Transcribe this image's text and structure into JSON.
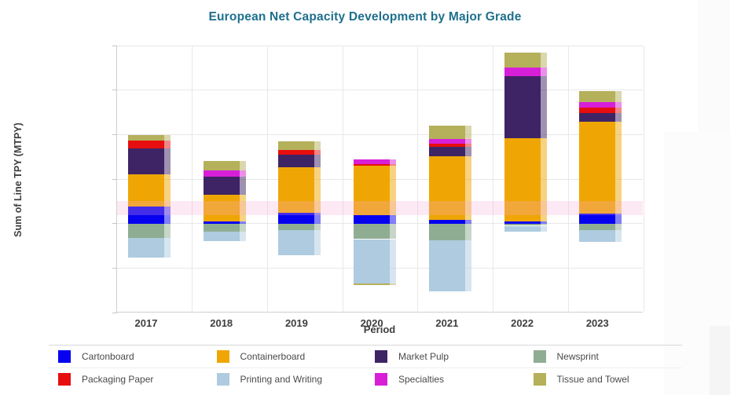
{
  "title": "European Net Capacity Development by Major Grade",
  "chart_data": {
    "type": "bar",
    "stacked": true,
    "title": "European Net Capacity Development by Major Grade",
    "xlabel": "Period",
    "ylabel": "Sum of Line TPY (MTPY)",
    "categories": [
      "2017",
      "2018",
      "2019",
      "2020",
      "2021",
      "2022",
      "2023"
    ],
    "series": [
      {
        "name": "Cartonboard",
        "color": "#0602F0",
        "values": [
          0.38,
          0.05,
          0.24,
          0.18,
          0.09,
          0.04,
          0.22
        ]
      },
      {
        "name": "Containerboard",
        "color": "#EFA604",
        "values": [
          0.72,
          0.59,
          1.03,
          1.12,
          1.42,
          1.87,
          2.06
        ]
      },
      {
        "name": "Market Pulp",
        "color": "#3E2465",
        "values": [
          0.59,
          0.41,
          0.27,
          0.0,
          0.22,
          1.41,
          0.21
        ]
      },
      {
        "name": "Newsprint",
        "color": "#8FAD92",
        "values": [
          -0.32,
          -0.18,
          -0.15,
          -0.35,
          -0.38,
          -0.05,
          -0.15
        ]
      },
      {
        "name": "Packaging Paper",
        "color": "#E60E0E",
        "values": [
          0.18,
          0.0,
          0.12,
          0.04,
          0.06,
          0.0,
          0.12
        ]
      },
      {
        "name": "Printing and Writing",
        "color": "#AECBDF",
        "values": [
          -0.44,
          -0.21,
          -0.56,
          -1.0,
          -1.15,
          -0.13,
          -0.27
        ]
      },
      {
        "name": "Specialties",
        "color": "#D81FD8",
        "values": [
          0.0,
          0.15,
          0.0,
          0.1,
          0.11,
          0.18,
          0.12
        ]
      },
      {
        "name": "Tissue and Towel",
        "color": "#B5B05A",
        "values": [
          0.12,
          0.21,
          0.18,
          -0.04,
          0.3,
          0.35,
          0.24
        ]
      }
    ],
    "ylim": [
      -2,
      4
    ],
    "gridline_step": 1,
    "y_tick_labels_visible": false,
    "legend_position": "bottom",
    "highlight_band": {
      "y_from": 0.51,
      "y_to": 0.19,
      "color": "rgba(246,170,214,0.26)"
    },
    "colors": {
      "title": "#1E6F8C",
      "axis_text": "#3F3F3F",
      "gridline": "#E8E8E8"
    }
  }
}
